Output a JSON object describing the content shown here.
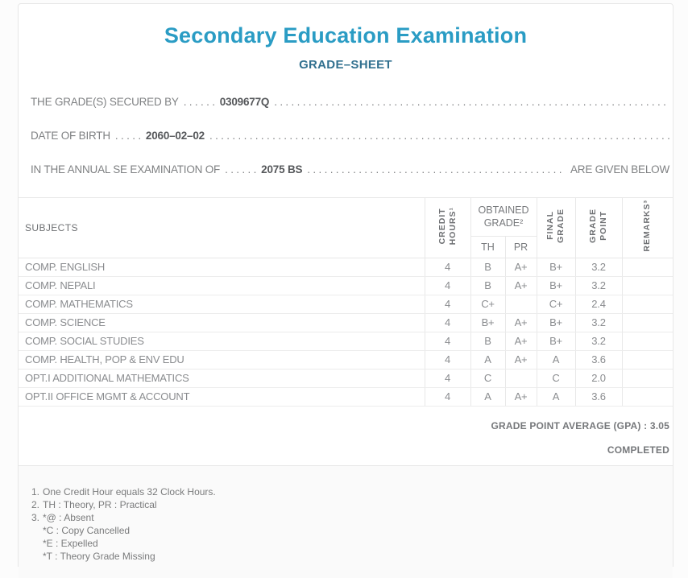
{
  "header": {
    "title": "Secondary Education Examination",
    "subtitle": "GRADE–SHEET"
  },
  "colors": {
    "title_accent": "#2a9cc4",
    "subtitle_accent": "#31708f"
  },
  "statements": {
    "leader": ". . . . . . . . . . . . . . . . . . . . . . . . . . . . . . . . . . . . . . . . . . . . . . . . . . . . . . . . . . . . . . . . . . . . . . . . . . . . . . . . . . . . . . . . . . . . . . . . . . . .",
    "secured_by": {
      "label": "THE GRADE(S) SECURED BY",
      "dots": ". . . . . .",
      "value": "0309677Q"
    },
    "date_of_birth": {
      "label": "DATE OF BIRTH",
      "dots": ". . . . .",
      "value": "2060–02–02"
    },
    "examination": {
      "label": "IN THE ANNUAL SE EXAMINATION OF",
      "dots": ". . . . . .",
      "value": "2075 BS",
      "suffix": "ARE GIVEN BELOW"
    }
  },
  "table": {
    "headers": {
      "subjects": "SUBJECTS",
      "credit_hours": "CREDIT\nHOURS¹",
      "obtained_grade": "OBTAINED\nGRADE²",
      "th": "TH",
      "pr": "PR",
      "final_grade": "FINAL\nGRADE",
      "grade_point": "GRADE\nPOINT",
      "remarks": "REMARKS³"
    },
    "rows": [
      {
        "subject": "COMP. ENGLISH",
        "credit": "4",
        "th": "B",
        "pr": "A+",
        "final": "B+",
        "grade_point": "3.2",
        "remarks": ""
      },
      {
        "subject": "COMP. NEPALI",
        "credit": "4",
        "th": "B",
        "pr": "A+",
        "final": "B+",
        "grade_point": "3.2",
        "remarks": ""
      },
      {
        "subject": "COMP. MATHEMATICS",
        "credit": "4",
        "th": "C+",
        "pr": "",
        "final": "C+",
        "grade_point": "2.4",
        "remarks": ""
      },
      {
        "subject": "COMP. SCIENCE",
        "credit": "4",
        "th": "B+",
        "pr": "A+",
        "final": "B+",
        "grade_point": "3.2",
        "remarks": ""
      },
      {
        "subject": "COMP. SOCIAL STUDIES",
        "credit": "4",
        "th": "B",
        "pr": "A+",
        "final": "B+",
        "grade_point": "3.2",
        "remarks": ""
      },
      {
        "subject": "COMP. HEALTH, POP & ENV EDU",
        "credit": "4",
        "th": "A",
        "pr": "A+",
        "final": "A",
        "grade_point": "3.6",
        "remarks": ""
      },
      {
        "subject": "OPT.I ADDITIONAL MATHEMATICS",
        "credit": "4",
        "th": "C",
        "pr": "",
        "final": "C",
        "grade_point": "2.0",
        "remarks": ""
      },
      {
        "subject": "OPT.II OFFICE MGMT & ACCOUNT",
        "credit": "4",
        "th": "A",
        "pr": "A+",
        "final": "A",
        "grade_point": "3.6",
        "remarks": ""
      }
    ]
  },
  "summary": {
    "gpa_line": "GRADE POINT AVERAGE (GPA) : 3.05",
    "status": "COMPLETED"
  },
  "footnotes": [
    {
      "num": "1.",
      "text": "One Credit Hour equals 32 Clock Hours."
    },
    {
      "num": "2.",
      "text": "TH : Theory, PR : Practical"
    },
    {
      "num": "3.",
      "text": "*@ : Absent"
    },
    {
      "num": "",
      "text": "*C : Copy Cancelled"
    },
    {
      "num": "",
      "text": "*E : Expelled"
    },
    {
      "num": "",
      "text": "*T : Theory Grade Missing"
    }
  ]
}
